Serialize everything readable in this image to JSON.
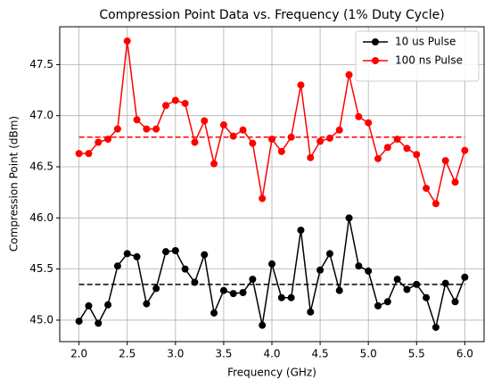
{
  "chart_data": {
    "type": "line",
    "title": "Compression Point Data vs. Frequency (1% Duty Cycle)",
    "x_label": "Frequency (GHz)",
    "y_label": "Compression Point (dBm)",
    "x": [
      2.0,
      2.1,
      2.2,
      2.3,
      2.4,
      2.5,
      2.6,
      2.7,
      2.8,
      2.9,
      3.0,
      3.1,
      3.2,
      3.3,
      3.4,
      3.5,
      3.6,
      3.7,
      3.8,
      3.9,
      4.0,
      4.1,
      4.2,
      4.3,
      4.4,
      4.5,
      4.6,
      4.7,
      4.8,
      4.9,
      5.0,
      5.1,
      5.2,
      5.3,
      5.4,
      5.5,
      5.6,
      5.7,
      5.8,
      5.9,
      6.0
    ],
    "series": [
      {
        "name": "10 us Pulse",
        "color": "#000000",
        "values": [
          44.99,
          45.14,
          44.97,
          45.15,
          45.53,
          45.65,
          45.62,
          45.16,
          45.31,
          45.67,
          45.68,
          45.5,
          45.37,
          45.64,
          45.07,
          45.29,
          45.26,
          45.27,
          45.4,
          44.95,
          45.55,
          45.22,
          45.22,
          45.88,
          45.08,
          45.49,
          45.65,
          45.29,
          46.0,
          45.53,
          45.48,
          45.14,
          45.18,
          45.4,
          45.3,
          45.35,
          45.22,
          44.93,
          45.36,
          45.18,
          45.42
        ]
      },
      {
        "name": "100 ns Pulse",
        "color": "#ff0000",
        "values": [
          46.63,
          46.63,
          46.74,
          46.77,
          46.87,
          47.73,
          46.96,
          46.87,
          46.87,
          47.1,
          47.15,
          47.12,
          46.74,
          46.95,
          46.53,
          46.91,
          46.8,
          46.86,
          46.73,
          46.19,
          46.77,
          46.65,
          46.79,
          47.3,
          46.59,
          46.75,
          46.78,
          46.86,
          47.4,
          46.99,
          46.93,
          46.58,
          46.69,
          46.77,
          46.68,
          46.62,
          46.29,
          46.14,
          46.56,
          46.35,
          46.66
        ]
      }
    ],
    "hlines": [
      {
        "y": 45.35,
        "color": "#000000"
      },
      {
        "y": 46.79,
        "color": "#ff0000"
      }
    ],
    "xlim": [
      1.8,
      6.2
    ],
    "xticks": [
      {
        "value": 2.0,
        "label": "2.0"
      },
      2.5,
      {
        "value": 3.0,
        "label": "3.0"
      },
      3.5,
      {
        "value": 4.0,
        "label": "4.0"
      },
      4.5,
      {
        "value": 5.0,
        "label": "5.0"
      },
      5.5,
      {
        "value": 6.0,
        "label": "6.0"
      }
    ],
    "ylim": [
      44.79,
      47.87
    ],
    "yticks": [
      {
        "value": 45.0,
        "label": "45.0"
      },
      45.5,
      {
        "value": 46.0,
        "label": "46.0"
      },
      46.5,
      {
        "value": 47.0,
        "label": "47.0"
      },
      47.5
    ],
    "grid": true,
    "legend": "upper right"
  }
}
